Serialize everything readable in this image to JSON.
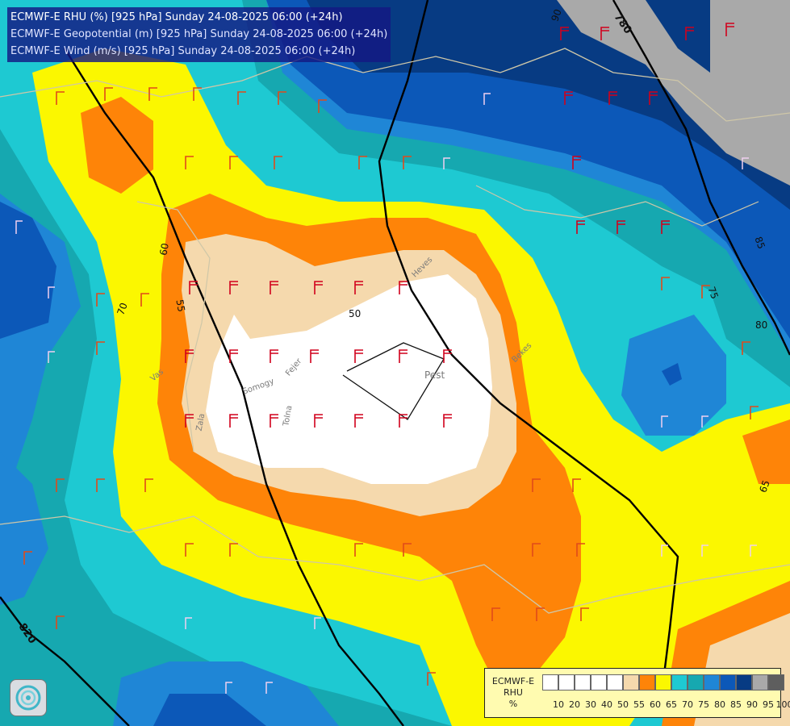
{
  "title_lines": [
    "ECMWF-E RHU (%) [925 hPa] Sunday 24-08-2025 06:00 (+24h)",
    "ECMWF-E Geopotential (m) [925 hPa] Sunday 24-08-2025 06:00 (+24h)",
    "ECMWF-E Wind (m/s) [925 hPa] Sunday 24-08-2025 06:00 (+24h)"
  ],
  "legend": {
    "label_lines": [
      "ECMWF-E",
      "RHU",
      "%"
    ],
    "ticks": [
      "10",
      "20",
      "30",
      "40",
      "50",
      "55",
      "60",
      "65",
      "70",
      "75",
      "80",
      "85",
      "90",
      "95",
      "100"
    ],
    "colors": [
      "#ffffff",
      "#ffffff",
      "#ffffff",
      "#ffffff",
      "#ffffff",
      "#f5d9ad",
      "#fe8408",
      "#fbf700",
      "#1ec9d2",
      "#16a8b0",
      "#1f86d6",
      "#0c58b8",
      "#073b83",
      "#a9a9a9",
      "#5e5e5e"
    ]
  },
  "contour_labels": [
    {
      "text": "780"
    },
    {
      "text": "820"
    },
    {
      "text": "60"
    },
    {
      "text": "55"
    },
    {
      "text": "50"
    },
    {
      "text": "70"
    },
    {
      "text": "65"
    },
    {
      "text": "75"
    },
    {
      "text": "80"
    },
    {
      "text": "85"
    },
    {
      "text": "90"
    }
  ],
  "place_labels": [
    "Pest",
    "Somogy",
    "Fejer",
    "Tolna",
    "Zala",
    "Vas",
    "Heves",
    "Bekes"
  ],
  "logo": {
    "icon": "ecmwf-swirl-icon"
  }
}
